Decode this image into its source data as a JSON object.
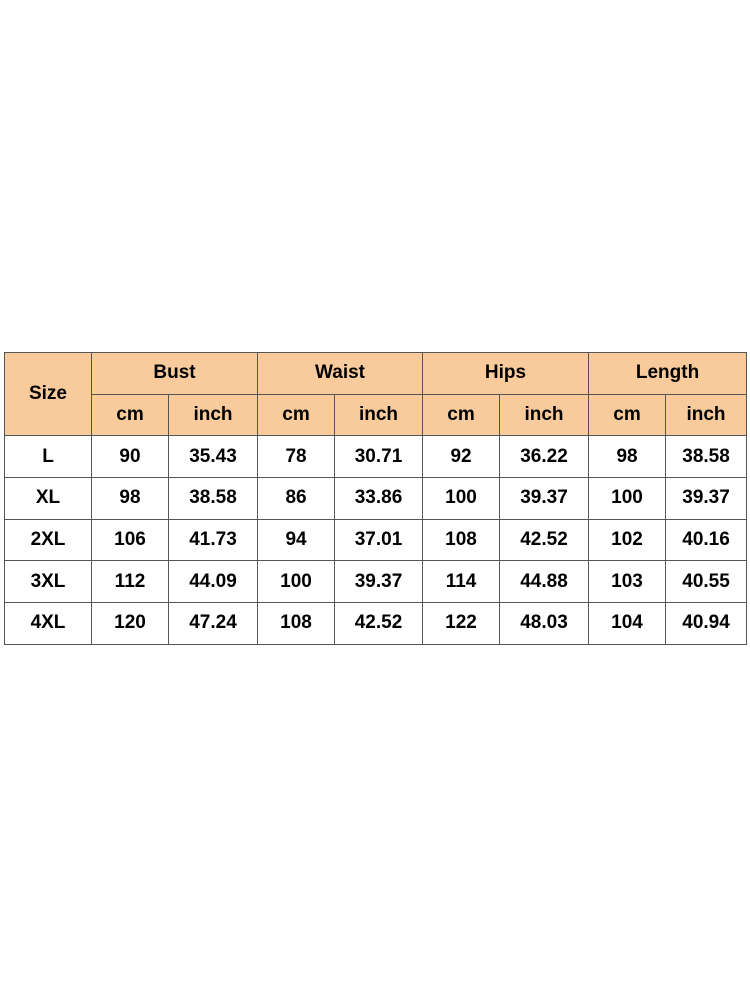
{
  "table": {
    "header": {
      "size": "Size",
      "groups": [
        {
          "name": "Bust",
          "units": [
            "cm",
            "inch"
          ]
        },
        {
          "name": "Waist",
          "units": [
            "cm",
            "inch"
          ]
        },
        {
          "name": "Hips",
          "units": [
            "cm",
            "inch"
          ]
        },
        {
          "name": "Length",
          "units": [
            "cm",
            "inch"
          ]
        }
      ]
    },
    "rows": [
      [
        "L",
        90,
        35.43,
        78,
        30.71,
        92,
        36.22,
        98,
        38.58
      ],
      [
        "XL",
        98,
        38.58,
        86,
        33.86,
        100,
        39.37,
        100,
        39.37
      ],
      [
        "2XL",
        106,
        41.73,
        94,
        37.01,
        108,
        42.52,
        102,
        40.16
      ],
      [
        "3XL",
        112,
        44.09,
        100,
        39.37,
        114,
        44.88,
        103,
        40.55
      ],
      [
        "4XL",
        120,
        47.24,
        108,
        42.52,
        122,
        48.03,
        104,
        40.94
      ]
    ]
  }
}
